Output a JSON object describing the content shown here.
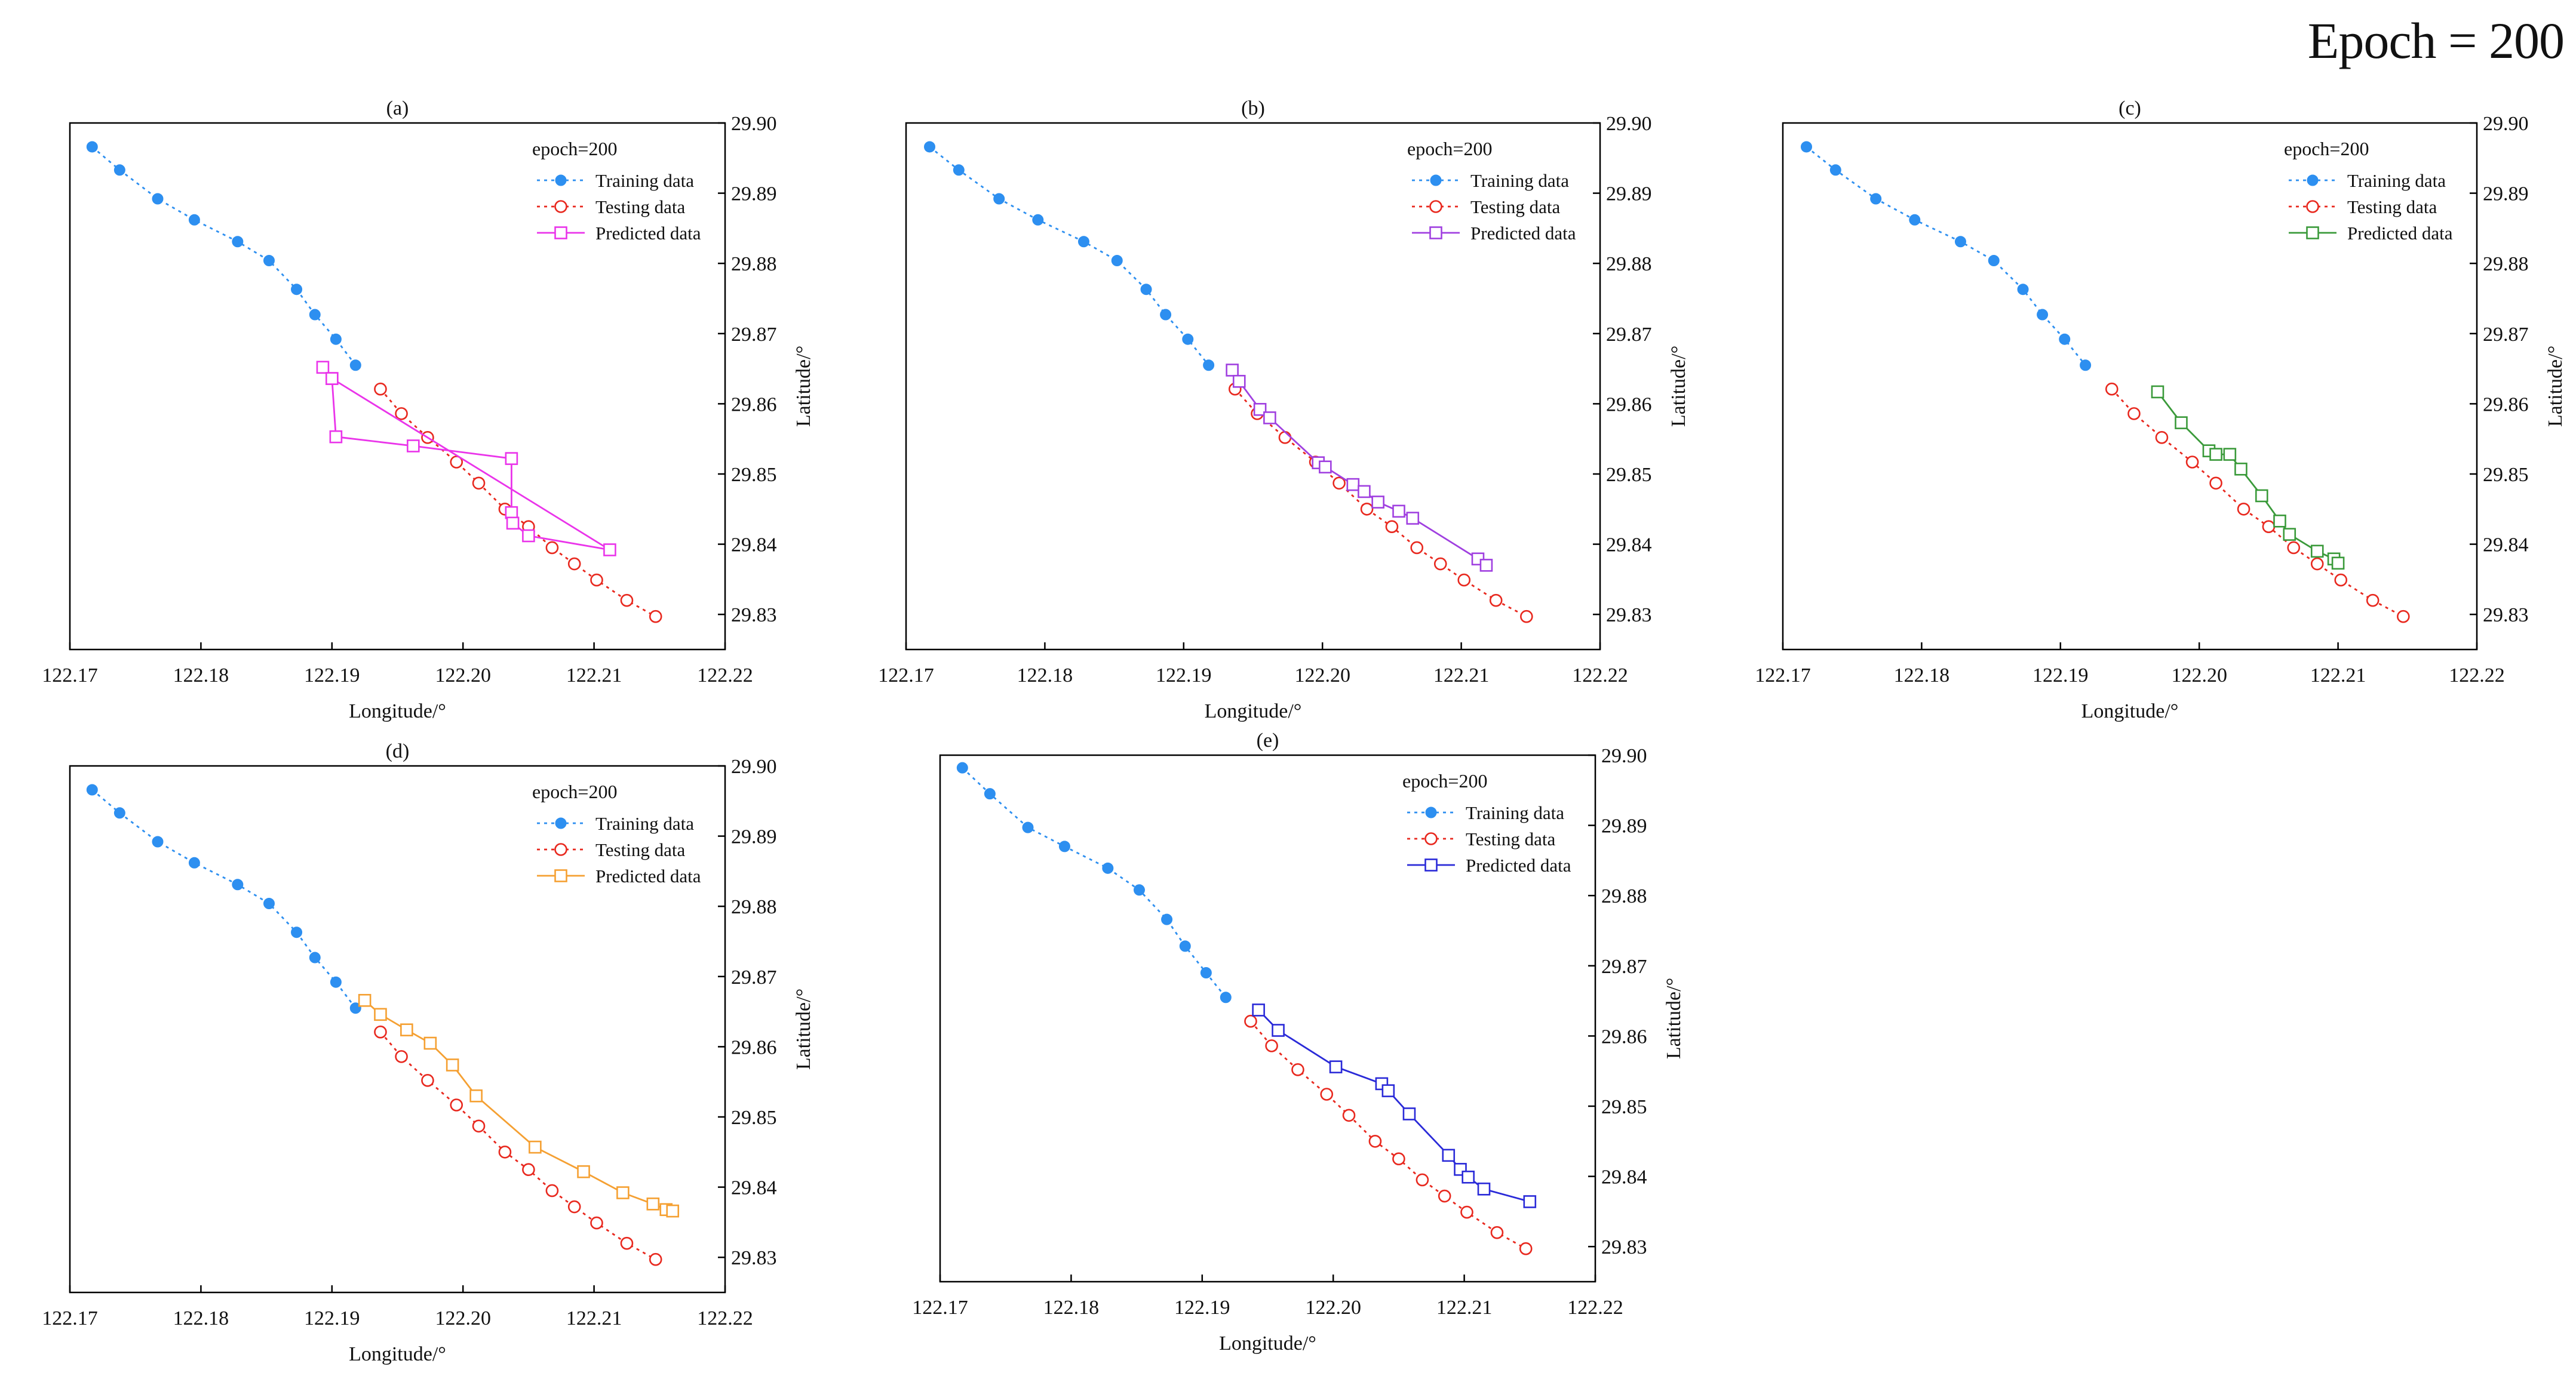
{
  "figure_title": "Epoch = 200",
  "chart_data": [
    {
      "type": "line",
      "title": "(a)",
      "xlabel": "Longitude/°",
      "ylabel": "Latitude/°",
      "xlim": [
        122.17,
        122.22
      ],
      "ylim": [
        29.825,
        29.9
      ],
      "xticks": [
        "122.17",
        "122.18",
        "122.19",
        "122.20",
        "122.21",
        "122.22"
      ],
      "yticks": [
        "29.83",
        "29.84",
        "29.85",
        "29.86",
        "29.87",
        "29.88",
        "29.89",
        "29.90"
      ],
      "legend_title": "epoch=200",
      "series": [
        {
          "name": "Training data",
          "color": "#2d8ff0",
          "x": [
            122.1717,
            122.1738,
            122.1767,
            122.1795,
            122.1828,
            122.1852,
            122.1873,
            122.1887,
            122.1903,
            122.1918
          ],
          "y": [
            29.8966,
            29.8933,
            29.8892,
            29.8862,
            29.8831,
            29.8804,
            29.8763,
            29.8727,
            29.8692,
            29.8655
          ]
        },
        {
          "name": "Testing data",
          "color": "#e8281e",
          "x": [
            122.1937,
            122.1953,
            122.1973,
            122.1995,
            122.2012,
            122.2032,
            122.205,
            122.2068,
            122.2085,
            122.2102,
            122.2125,
            122.2147
          ],
          "y": [
            29.8621,
            29.8586,
            29.8552,
            29.8517,
            29.8487,
            29.845,
            29.8425,
            29.8395,
            29.8372,
            29.8349,
            29.832,
            29.8297
          ]
        },
        {
          "name": "Predicted data",
          "color": "#ea34ea",
          "x": [
            122.1893,
            122.19,
            122.1903,
            122.1962,
            122.2037,
            122.2037,
            122.2038,
            122.205,
            122.2112,
            122.19
          ],
          "y": [
            29.8652,
            29.8636,
            29.8553,
            29.854,
            29.8522,
            29.8445,
            29.843,
            29.8412,
            29.8392,
            29.8636
          ]
        }
      ]
    },
    {
      "type": "line",
      "title": "(b)",
      "xlabel": "Longitude/°",
      "ylabel": "Latitude/°",
      "xlim": [
        122.17,
        122.22
      ],
      "ylim": [
        29.825,
        29.9
      ],
      "xticks": [
        "122.17",
        "122.18",
        "122.19",
        "122.20",
        "122.21",
        "122.22"
      ],
      "yticks": [
        "29.83",
        "29.84",
        "29.85",
        "29.86",
        "29.87",
        "29.88",
        "29.89",
        "29.90"
      ],
      "legend_title": "epoch=200",
      "series": [
        {
          "name": "Training data",
          "color": "#2d8ff0",
          "x": [
            122.1717,
            122.1738,
            122.1767,
            122.1795,
            122.1828,
            122.1852,
            122.1873,
            122.1887,
            122.1903,
            122.1918
          ],
          "y": [
            29.8966,
            29.8933,
            29.8892,
            29.8862,
            29.8831,
            29.8804,
            29.8763,
            29.8727,
            29.8692,
            29.8655
          ]
        },
        {
          "name": "Testing data",
          "color": "#e8281e",
          "x": [
            122.1937,
            122.1953,
            122.1973,
            122.1995,
            122.2012,
            122.2032,
            122.205,
            122.2068,
            122.2085,
            122.2102,
            122.2125,
            122.2147
          ],
          "y": [
            29.8621,
            29.8586,
            29.8552,
            29.8517,
            29.8487,
            29.845,
            29.8425,
            29.8395,
            29.8372,
            29.8349,
            29.832,
            29.8297
          ]
        },
        {
          "name": "Predicted data",
          "color": "#a040e0",
          "x": [
            122.1935,
            122.194,
            122.1955,
            122.1962,
            122.1997,
            122.2002,
            122.2022,
            122.203,
            122.204,
            122.2055,
            122.2065,
            122.2112,
            122.2118
          ],
          "y": [
            29.8648,
            29.8632,
            29.8592,
            29.858,
            29.8516,
            29.851,
            29.8485,
            29.8475,
            29.846,
            29.8447,
            29.8437,
            29.8379,
            29.837
          ]
        }
      ]
    },
    {
      "type": "line",
      "title": "(c)",
      "xlabel": "Longitude/°",
      "ylabel": "Latitude/°",
      "xlim": [
        122.17,
        122.22
      ],
      "ylim": [
        29.825,
        29.9
      ],
      "xticks": [
        "122.17",
        "122.18",
        "122.19",
        "122.20",
        "122.21",
        "122.22"
      ],
      "yticks": [
        "29.83",
        "29.84",
        "29.85",
        "29.86",
        "29.87",
        "29.88",
        "29.89",
        "29.90"
      ],
      "legend_title": "epoch=200",
      "series": [
        {
          "name": "Training data",
          "color": "#2d8ff0",
          "x": [
            122.1717,
            122.1738,
            122.1767,
            122.1795,
            122.1828,
            122.1852,
            122.1873,
            122.1887,
            122.1903,
            122.1918
          ],
          "y": [
            29.8966,
            29.8933,
            29.8892,
            29.8862,
            29.8831,
            29.8804,
            29.8763,
            29.8727,
            29.8692,
            29.8655
          ]
        },
        {
          "name": "Testing data",
          "color": "#e8281e",
          "x": [
            122.1937,
            122.1953,
            122.1973,
            122.1995,
            122.2012,
            122.2032,
            122.205,
            122.2068,
            122.2085,
            122.2102,
            122.2125,
            122.2147
          ],
          "y": [
            29.8621,
            29.8586,
            29.8552,
            29.8517,
            29.8487,
            29.845,
            29.8425,
            29.8395,
            29.8372,
            29.8349,
            29.832,
            29.8297
          ]
        },
        {
          "name": "Predicted data",
          "color": "#3a9a3a",
          "x": [
            122.197,
            122.1987,
            122.2007,
            122.2012,
            122.2022,
            122.203,
            122.2045,
            122.2058,
            122.2065,
            122.2085,
            122.2097,
            122.21
          ],
          "y": [
            29.8617,
            29.8573,
            29.8533,
            29.8528,
            29.8528,
            29.8507,
            29.8469,
            29.8433,
            29.8414,
            29.839,
            29.8379,
            29.8373
          ]
        }
      ]
    },
    {
      "type": "line",
      "title": "(d)",
      "xlabel": "Longitude/°",
      "ylabel": "Latitude/°",
      "xlim": [
        122.17,
        122.22
      ],
      "ylim": [
        29.825,
        29.9
      ],
      "xticks": [
        "122.17",
        "122.18",
        "122.19",
        "122.20",
        "122.21",
        "122.22"
      ],
      "yticks": [
        "29.83",
        "29.84",
        "29.85",
        "29.86",
        "29.87",
        "29.88",
        "29.89",
        "29.90"
      ],
      "legend_title": "epoch=200",
      "series": [
        {
          "name": "Training data",
          "color": "#2d8ff0",
          "x": [
            122.1717,
            122.1738,
            122.1767,
            122.1795,
            122.1828,
            122.1852,
            122.1873,
            122.1887,
            122.1903,
            122.1918
          ],
          "y": [
            29.8966,
            29.8933,
            29.8892,
            29.8862,
            29.8831,
            29.8804,
            29.8763,
            29.8727,
            29.8692,
            29.8655
          ]
        },
        {
          "name": "Testing data",
          "color": "#e8281e",
          "x": [
            122.1937,
            122.1953,
            122.1973,
            122.1995,
            122.2012,
            122.2032,
            122.205,
            122.2068,
            122.2085,
            122.2102,
            122.2125,
            122.2147
          ],
          "y": [
            29.8621,
            29.8586,
            29.8552,
            29.8517,
            29.8487,
            29.845,
            29.8425,
            29.8395,
            29.8372,
            29.8349,
            29.832,
            29.8297
          ]
        },
        {
          "name": "Predicted data",
          "color": "#f5a032",
          "x": [
            122.1925,
            122.1937,
            122.1957,
            122.1975,
            122.1992,
            122.201,
            122.2055,
            122.2092,
            122.2122,
            122.2145,
            122.2155,
            122.216
          ],
          "y": [
            29.8666,
            29.8646,
            29.8624,
            29.8605,
            29.8574,
            29.853,
            29.8457,
            29.8422,
            29.8392,
            29.8376,
            29.8368,
            29.8366
          ]
        }
      ]
    },
    {
      "type": "line",
      "title": "(e)",
      "xlabel": "Longitude/°",
      "ylabel": "Latitude/°",
      "xlim": [
        122.17,
        122.22
      ],
      "ylim": [
        29.825,
        29.9
      ],
      "xticks": [
        "122.17",
        "122.18",
        "122.19",
        "122.20",
        "122.21",
        "122.22"
      ],
      "yticks": [
        "29.83",
        "29.84",
        "29.85",
        "29.86",
        "29.87",
        "29.88",
        "29.89",
        "29.90"
      ],
      "legend_title": "epoch=200",
      "series": [
        {
          "name": "Training data",
          "color": "#2d8ff0",
          "x": [
            122.1717,
            122.1738,
            122.1767,
            122.1795,
            122.1828,
            122.1852,
            122.1873,
            122.1887,
            122.1903,
            122.1918
          ],
          "y": [
            29.8982,
            29.8945,
            29.8897,
            29.887,
            29.8839,
            29.8808,
            29.8766,
            29.8728,
            29.869,
            29.8655
          ]
        },
        {
          "name": "Testing data",
          "color": "#e8281e",
          "x": [
            122.1937,
            122.1953,
            122.1973,
            122.1995,
            122.2012,
            122.2032,
            122.205,
            122.2068,
            122.2085,
            122.2102,
            122.2125,
            122.2147
          ],
          "y": [
            29.8621,
            29.8586,
            29.8552,
            29.8517,
            29.8487,
            29.845,
            29.8425,
            29.8395,
            29.8372,
            29.8349,
            29.832,
            29.8297
          ]
        },
        {
          "name": "Predicted data",
          "color": "#2a2ad8",
          "x": [
            122.1943,
            122.1958,
            122.2002,
            122.2037,
            122.2042,
            122.2058,
            122.2088,
            122.2097,
            122.2103,
            122.2115,
            122.215
          ],
          "y": [
            29.8637,
            29.8608,
            29.8556,
            29.8532,
            29.8522,
            29.8489,
            29.843,
            29.841,
            29.8399,
            29.8382,
            29.8364
          ]
        }
      ]
    }
  ]
}
